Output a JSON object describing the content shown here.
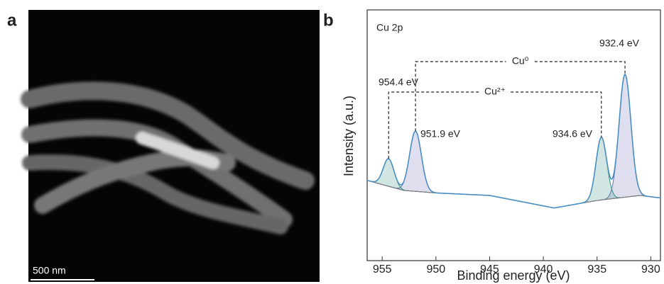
{
  "panels": {
    "a": {
      "label": "a",
      "scale_bar": "500 nm"
    },
    "b": {
      "label": "b"
    }
  },
  "chart_data": {
    "type": "xps",
    "title": "Cu 2p",
    "xlabel": "Binding energy (eV)",
    "ylabel": "Intensity (a.u.)",
    "xlim": [
      956.4,
      929.1
    ],
    "xticks": [
      955,
      950,
      945,
      940,
      935,
      930
    ],
    "ylim": [
      0,
      100
    ],
    "background": {
      "x": [
        956.4,
        953,
        950,
        945,
        939,
        935,
        931,
        929.1
      ],
      "values": [
        32,
        28,
        27,
        26,
        21,
        24,
        26,
        25
      ],
      "color": "#7f7f7f"
    },
    "envelope_color": "#4a8fc0",
    "peaks": [
      {
        "center": 932.4,
        "label": "932.4 eV",
        "height": 49,
        "width": 0.55,
        "color": "#6c6fb8"
      },
      {
        "center": 934.6,
        "label": "934.6 eV",
        "height": 25,
        "width": 0.5,
        "color": "#2f8f7f"
      },
      {
        "center": 951.9,
        "label": "951.9 eV",
        "height": 24,
        "width": 0.55,
        "color": "#6c6fb8"
      },
      {
        "center": 954.4,
        "label": "954.4 eV",
        "height": 11,
        "width": 0.5,
        "color": "#2f8f7f"
      }
    ],
    "brackets": [
      {
        "label": "Cu⁰"
      },
      {
        "label": "Cu²⁺"
      }
    ]
  }
}
